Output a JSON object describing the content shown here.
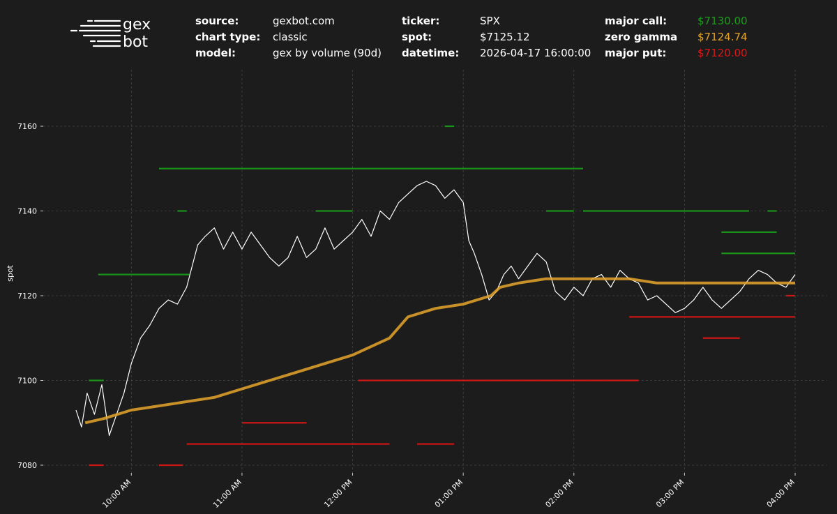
{
  "logo": {
    "line1": "gex",
    "line2": "bot"
  },
  "header": {
    "fields": [
      {
        "key": "source:",
        "value": "gexbot.com",
        "color": "#ffffff"
      },
      {
        "key": "chart type:",
        "value": "classic",
        "color": "#ffffff"
      },
      {
        "key": "model:",
        "value": "gex by volume (90d)",
        "color": "#ffffff"
      },
      {
        "key": "ticker:",
        "value": "SPX",
        "color": "#ffffff"
      },
      {
        "key": "spot:",
        "value": "$7125.12",
        "color": "#ffffff"
      },
      {
        "key": "datetime:",
        "value": "2026-04-17 16:00:00",
        "color": "#ffffff"
      },
      {
        "key": "major call:",
        "value": "$7130.00",
        "color": "#1a9e1a"
      },
      {
        "key": "zero gamma",
        "value": "$7124.74",
        "color": "#e6a52a"
      },
      {
        "key": "major put:",
        "value": "$7120.00",
        "color": "#e01515"
      }
    ]
  },
  "chart_data": {
    "type": "line",
    "ylabel": "spot",
    "xlabel": "",
    "ylim": [
      7077,
      7173
    ],
    "xlim": [
      "09:30",
      "16:00"
    ],
    "yticks": [
      7080,
      7100,
      7120,
      7140,
      7160
    ],
    "xticks": [
      "10:00 AM",
      "11:00 AM",
      "12:00 PM",
      "01:00 PM",
      "02:00 PM",
      "03:00 PM",
      "04:00 PM"
    ],
    "grid": true,
    "colors": {
      "spot": "#ffffff",
      "zero_gamma": "#e6a52a",
      "call": "#1a9e1a",
      "put": "#e01515",
      "grid": "#444444"
    },
    "series": [
      {
        "key": "spot",
        "x": [
          "09:30",
          "09:33",
          "09:36",
          "09:40",
          "09:44",
          "09:48",
          "09:52",
          "09:56",
          "10:00",
          "10:05",
          "10:10",
          "10:15",
          "10:20",
          "10:25",
          "10:30",
          "10:33",
          "10:36",
          "10:40",
          "10:45",
          "10:50",
          "10:55",
          "11:00",
          "11:05",
          "11:10",
          "11:15",
          "11:20",
          "11:25",
          "11:30",
          "11:35",
          "11:40",
          "11:45",
          "11:50",
          "11:55",
          "12:00",
          "12:05",
          "12:10",
          "12:15",
          "12:20",
          "12:25",
          "12:30",
          "12:35",
          "12:40",
          "12:45",
          "12:50",
          "12:55",
          "13:00",
          "13:03",
          "13:06",
          "13:10",
          "13:14",
          "13:18",
          "13:22",
          "13:26",
          "13:30",
          "13:35",
          "13:40",
          "13:45",
          "13:50",
          "13:55",
          "14:00",
          "14:05",
          "14:10",
          "14:15",
          "14:20",
          "14:25",
          "14:30",
          "14:35",
          "14:40",
          "14:45",
          "14:50",
          "14:55",
          "15:00",
          "15:05",
          "15:10",
          "15:15",
          "15:20",
          "15:25",
          "15:30",
          "15:35",
          "15:40",
          "15:45",
          "15:50",
          "15:55",
          "16:00"
        ],
        "values": [
          7093,
          7089,
          7097,
          7092,
          7099,
          7087,
          7092,
          7097,
          7104,
          7110,
          7113,
          7117,
          7119,
          7118,
          7122,
          7127,
          7132,
          7134,
          7136,
          7131,
          7135,
          7131,
          7135,
          7132,
          7129,
          7127,
          7129,
          7134,
          7129,
          7131,
          7136,
          7131,
          7133,
          7135,
          7138,
          7134,
          7140,
          7138,
          7142,
          7144,
          7146,
          7147,
          7146,
          7143,
          7145,
          7142,
          7133,
          7130,
          7125,
          7119,
          7121,
          7125,
          7127,
          7124,
          7127,
          7130,
          7128,
          7121,
          7119,
          7122,
          7120,
          7124,
          7125,
          7122,
          7126,
          7124,
          7123,
          7119,
          7120,
          7118,
          7116,
          7117,
          7119,
          7122,
          7119,
          7117,
          7119,
          7121,
          7124,
          7126,
          7125,
          7123,
          7122,
          7125
        ]
      },
      {
        "key": "zero_gamma",
        "x": [
          "09:35",
          "09:45",
          "10:00",
          "10:15",
          "10:30",
          "10:45",
          "11:00",
          "11:15",
          "11:30",
          "11:45",
          "12:00",
          "12:10",
          "12:20",
          "12:30",
          "12:45",
          "13:00",
          "13:15",
          "13:20",
          "13:30",
          "13:45",
          "14:00",
          "14:15",
          "14:30",
          "14:45",
          "15:00",
          "15:15",
          "15:30",
          "15:45",
          "16:00"
        ],
        "values": [
          7090,
          7091,
          7093,
          7094,
          7095,
          7096,
          7098,
          7100,
          7102,
          7104,
          7106,
          7108,
          7110,
          7115,
          7117,
          7118,
          7120,
          7122,
          7123,
          7124,
          7124,
          7124,
          7124,
          7123,
          7123,
          7123,
          7123,
          7123,
          7123
        ]
      }
    ],
    "gex_levels": [
      {
        "type": "call",
        "price": 7160,
        "start": "12:50",
        "end": "12:55"
      },
      {
        "type": "call",
        "price": 7150,
        "start": "10:15",
        "end": "14:05"
      },
      {
        "type": "call",
        "price": 7140,
        "start": "10:25",
        "end": "10:30"
      },
      {
        "type": "call",
        "price": 7140,
        "start": "11:40",
        "end": "12:00"
      },
      {
        "type": "call",
        "price": 7140,
        "start": "13:45",
        "end": "14:00"
      },
      {
        "type": "call",
        "price": 7140,
        "start": "14:05",
        "end": "15:35"
      },
      {
        "type": "call",
        "price": 7140,
        "start": "15:45",
        "end": "15:50"
      },
      {
        "type": "call",
        "price": 7135,
        "start": "15:20",
        "end": "15:50"
      },
      {
        "type": "call",
        "price": 7130,
        "start": "15:20",
        "end": "16:00"
      },
      {
        "type": "call",
        "price": 7125,
        "start": "09:42",
        "end": "10:32"
      },
      {
        "type": "call",
        "price": 7100,
        "start": "09:37",
        "end": "09:45"
      },
      {
        "type": "put",
        "price": 7120,
        "start": "15:55",
        "end": "16:00"
      },
      {
        "type": "put",
        "price": 7115,
        "start": "14:30",
        "end": "16:00"
      },
      {
        "type": "put",
        "price": 7110,
        "start": "15:10",
        "end": "15:30"
      },
      {
        "type": "put",
        "price": 7100,
        "start": "12:03",
        "end": "14:35"
      },
      {
        "type": "put",
        "price": 7090,
        "start": "11:00",
        "end": "11:35"
      },
      {
        "type": "put",
        "price": 7085,
        "start": "10:30",
        "end": "12:20"
      },
      {
        "type": "put",
        "price": 7085,
        "start": "12:35",
        "end": "12:55"
      },
      {
        "type": "put",
        "price": 7080,
        "start": "09:37",
        "end": "09:45"
      },
      {
        "type": "put",
        "price": 7080,
        "start": "10:15",
        "end": "10:28"
      }
    ]
  }
}
